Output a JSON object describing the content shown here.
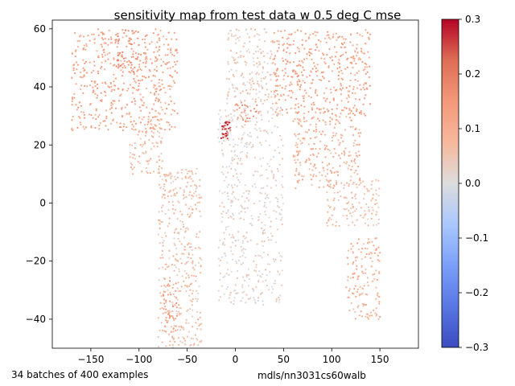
{
  "chart_data": {
    "type": "scatter",
    "title": "sensitivity map from test data w 0.5 deg C mse",
    "xlabel": "",
    "ylabel": "",
    "xlim": [
      -190,
      190
    ],
    "ylim": [
      -50,
      63
    ],
    "xticks": [
      -150,
      -100,
      -50,
      0,
      50,
      100,
      150
    ],
    "yticks": [
      -40,
      -20,
      0,
      20,
      40,
      60
    ],
    "grid": false,
    "colormap": "coolwarm",
    "colorbar": {
      "vmin": -0.3,
      "vmax": 0.3,
      "ticks": [
        "0.3",
        "0.2",
        "0.1",
        "0.0",
        "−0.1",
        "−0.2",
        "−0.3"
      ],
      "tick_values": [
        0.3,
        0.2,
        0.1,
        0.0,
        -0.1,
        -0.2,
        -0.3
      ]
    },
    "regions": [
      {
        "lon": [
          -170,
          -60
        ],
        "lat": [
          25,
          60
        ],
        "value": 0.12
      },
      {
        "lon": [
          -125,
          -100
        ],
        "lat": [
          45,
          60
        ],
        "value": 0.17
      },
      {
        "lon": [
          -110,
          -75
        ],
        "lat": [
          10,
          30
        ],
        "value": 0.08
      },
      {
        "lon": [
          -80,
          -35
        ],
        "lat": [
          -55,
          12
        ],
        "value": 0.06
      },
      {
        "lon": [
          -75,
          -60
        ],
        "lat": [
          -45,
          -25
        ],
        "value": 0.13
      },
      {
        "lon": [
          -10,
          40
        ],
        "lat": [
          35,
          60
        ],
        "value": 0.04
      },
      {
        "lon": [
          40,
          140
        ],
        "lat": [
          30,
          60
        ],
        "value": 0.12
      },
      {
        "lon": [
          60,
          130
        ],
        "lat": [
          5,
          30
        ],
        "value": 0.09
      },
      {
        "lon": [
          -18,
          50
        ],
        "lat": [
          -35,
          35
        ],
        "value": 0.02
      },
      {
        "lon": [
          -15,
          -5
        ],
        "lat": [
          22,
          28
        ],
        "value": 0.26
      },
      {
        "lon": [
          0,
          25
        ],
        "lat": [
          28,
          35
        ],
        "value": 0.14
      },
      {
        "lon": [
          115,
          150
        ],
        "lat": [
          -40,
          -12
        ],
        "value": 0.09
      },
      {
        "lon": [
          95,
          150
        ],
        "lat": [
          -8,
          8
        ],
        "value": 0.06
      }
    ]
  },
  "footer": {
    "left": "34 batches of 400 examples",
    "right": "mdls/nn3031cs60walb"
  },
  "colors": {
    "cmap_low": "#3b4cc0",
    "cmap_mid": "#dddddd",
    "cmap_high": "#b40426"
  }
}
